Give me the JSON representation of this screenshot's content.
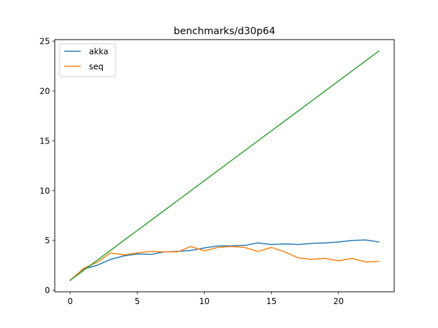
{
  "chart_data": {
    "type": "line",
    "title": "benchmarks/d30p64",
    "xlabel": "",
    "ylabel": "",
    "xlim": [
      -1.15,
      24.15
    ],
    "ylim": [
      -0.15,
      25.15
    ],
    "xticks": [
      0,
      5,
      10,
      15,
      20
    ],
    "xtick_labels": [
      "0",
      "5",
      "10",
      "15",
      "20"
    ],
    "yticks": [
      0,
      5,
      10,
      15,
      20,
      25
    ],
    "ytick_labels": [
      "0",
      "5",
      "10",
      "15",
      "20",
      "25"
    ],
    "grid": false,
    "legend_position": "top-left",
    "x": [
      0,
      1,
      2,
      3,
      4,
      5,
      6,
      7,
      8,
      9,
      10,
      11,
      12,
      13,
      14,
      15,
      16,
      17,
      18,
      19,
      20,
      21,
      22,
      23
    ],
    "series": [
      {
        "name": "akka",
        "color": "#1f77b4",
        "in_legend": true,
        "values": [
          1.0,
          2.15,
          2.5,
          3.1,
          3.45,
          3.65,
          3.6,
          3.85,
          3.9,
          4.0,
          4.25,
          4.45,
          4.45,
          4.5,
          4.75,
          4.6,
          4.65,
          4.6,
          4.7,
          4.75,
          4.85,
          5.0,
          5.05,
          4.85
        ]
      },
      {
        "name": "seq",
        "color": "#ff7f0e",
        "in_legend": true,
        "values": [
          1.0,
          2.2,
          2.8,
          3.75,
          3.55,
          3.75,
          3.9,
          3.85,
          3.85,
          4.4,
          3.95,
          4.3,
          4.4,
          4.3,
          3.9,
          4.3,
          3.85,
          3.25,
          3.1,
          3.2,
          2.95,
          3.2,
          2.85,
          2.9
        ]
      },
      {
        "name": "",
        "color": "#2ca02c",
        "in_legend": false,
        "values": [
          1,
          2,
          3,
          4,
          5,
          6,
          7,
          8,
          9,
          10,
          11,
          12,
          13,
          14,
          15,
          16,
          17,
          18,
          19,
          20,
          21,
          22,
          23,
          24
        ]
      }
    ]
  }
}
